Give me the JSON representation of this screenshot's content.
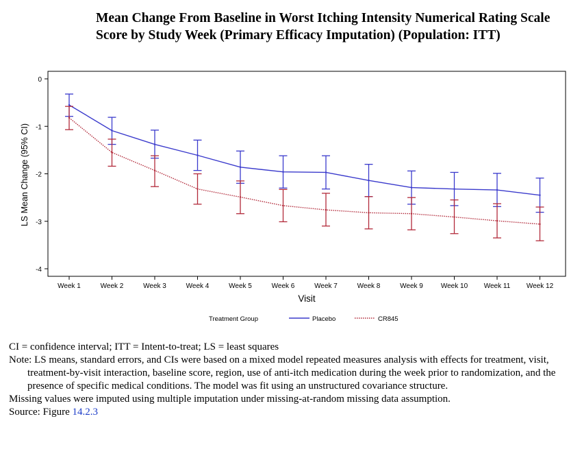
{
  "chart_data": {
    "type": "line",
    "title": "Mean Change From Baseline in Worst Itching Intensity Numerical Rating Scale Score by Study Week (Primary Efficacy Imputation) (Population: ITT)",
    "xlabel": "Visit",
    "ylabel": "LS Mean Change (95% CI)",
    "categories": [
      "Week 1",
      "Week 2",
      "Week 3",
      "Week 4",
      "Week 5",
      "Week 6",
      "Week 7",
      "Week 8",
      "Week 9",
      "Week 10",
      "Week 11",
      "Week 12"
    ],
    "ylim": [
      -4,
      0
    ],
    "yticks": [
      "0",
      "-1",
      "-2",
      "-3",
      "-4"
    ],
    "legend_title": "Treatment Group",
    "legend_position": "bottom",
    "series": [
      {
        "name": "Placebo",
        "color": "#3a3acc",
        "line_style": "solid",
        "values": [
          -0.55,
          -1.09,
          -1.38,
          -1.61,
          -1.86,
          -1.96,
          -1.97,
          -2.14,
          -2.29,
          -2.32,
          -2.34,
          -2.45
        ],
        "lower": [
          -0.79,
          -1.38,
          -1.67,
          -1.93,
          -2.2,
          -2.3,
          -2.32,
          -2.48,
          -2.64,
          -2.67,
          -2.69,
          -2.81
        ],
        "upper": [
          -0.32,
          -0.81,
          -1.08,
          -1.29,
          -1.52,
          -1.62,
          -1.62,
          -1.8,
          -1.94,
          -1.97,
          -1.99,
          -2.09
        ]
      },
      {
        "name": "CR845",
        "color": "#b22a3a",
        "line_style": "dotted",
        "values": [
          -0.82,
          -1.55,
          -1.93,
          -2.32,
          -2.49,
          -2.67,
          -2.76,
          -2.82,
          -2.84,
          -2.91,
          -2.99,
          -3.06
        ],
        "lower": [
          -1.07,
          -1.84,
          -2.27,
          -2.64,
          -2.84,
          -3.01,
          -3.1,
          -3.16,
          -3.18,
          -3.26,
          -3.35,
          -3.41
        ],
        "upper": [
          -0.58,
          -1.27,
          -1.62,
          -2.0,
          -2.15,
          -2.33,
          -2.41,
          -2.48,
          -2.5,
          -2.55,
          -2.63,
          -2.7
        ]
      }
    ]
  },
  "footnotes": {
    "abbreviations": "CI = confidence interval; ITT = Intent-to-treat; LS = least squares",
    "note": "Note:  LS means, standard errors, and CIs were based on a mixed model repeated measures analysis with effects for treatment, visit, treatment-by-visit interaction, baseline score, region, use of anti-itch medication during the week prior to randomization, and the presence of specific medical conditions.  The model was fit using an unstructured covariance structure.",
    "missing": "Missing values were imputed using multiple imputation under missing-at-random missing data assumption.",
    "source_label": "Source:  Figure ",
    "source_ref": "14.2.3"
  }
}
